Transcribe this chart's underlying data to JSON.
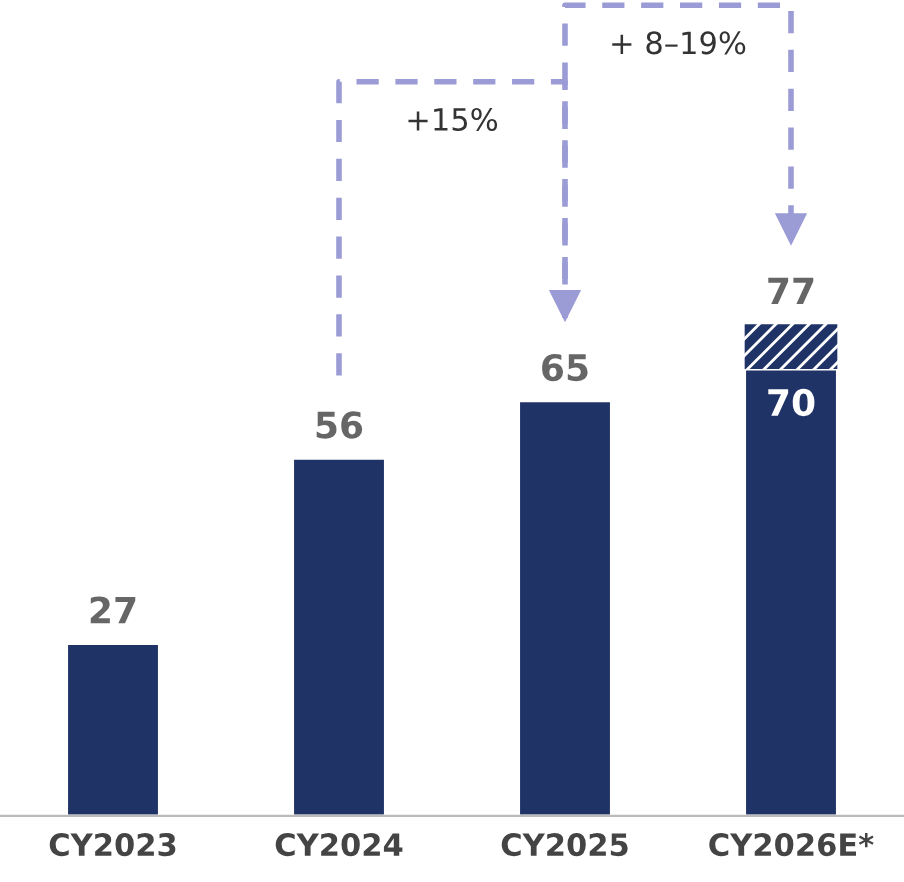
{
  "chart_data": {
    "type": "bar",
    "stacked": true,
    "categories": [
      "CY2023",
      "CY2024",
      "CY2025",
      "CY2026E*"
    ],
    "series": [
      {
        "color": "#1f3366",
        "values": [
          27,
          56,
          65,
          70
        ],
        "value_labels": [
          null,
          null,
          null,
          "70"
        ]
      },
      {
        "color": "#1f3366",
        "values": [
          null,
          null,
          null,
          7
        ]
      }
    ],
    "totals": [
      "27",
      "56",
      "65",
      "77"
    ],
    "annotations": [
      "+15%",
      "+ 8–19%"
    ],
    "grid": false,
    "legend": false
  }
}
